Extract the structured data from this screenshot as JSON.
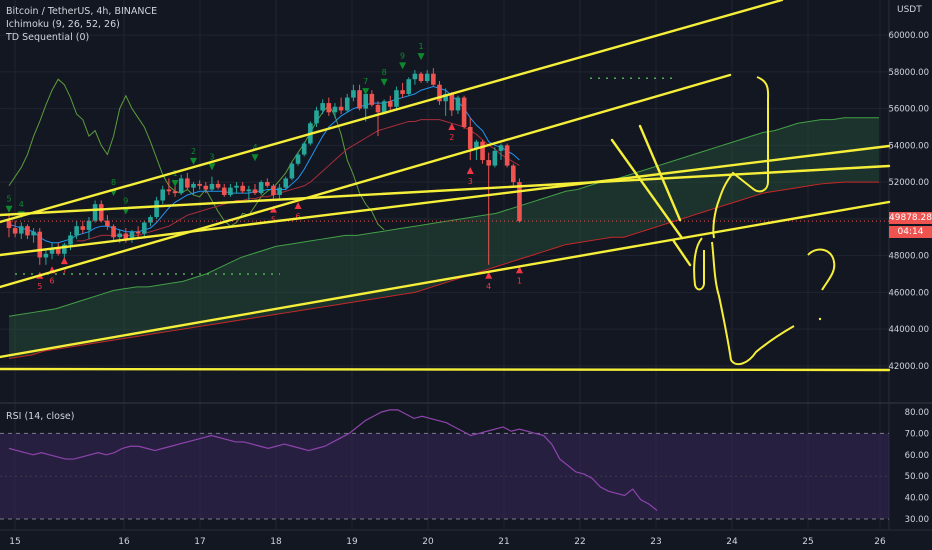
{
  "header": {
    "symbol_line": "Bitcoin / TetherUS, 4h, BINANCE",
    "ichimoku_label": "Ichimoku (9, 26, 52, 26)",
    "td_label": "TD Sequential (0)",
    "rsi_label": "RSI (14, close)",
    "currency": "USDT"
  },
  "price_tag": {
    "value": "49878.28",
    "countdown": "04:14"
  },
  "colors": {
    "background": "#131722",
    "up_candle": "#26a69a",
    "down_candle": "#ef5350",
    "drawing": "#f5ef3a",
    "rsi_line": "#8e44ad",
    "rsi_band": "#3f2a66",
    "tenkan": "#2196f3",
    "kijun": "#a82d3b",
    "chikou": "#5b9c3a",
    "cloud": "#2e5e3e"
  },
  "chart_data": [
    {
      "type": "candlestick",
      "title": "Bitcoin / TetherUS, 4h, BINANCE",
      "x_tick_labels": [
        "15",
        "16",
        "17",
        "18",
        "19",
        "20",
        "21",
        "22",
        "23",
        "24",
        "25",
        "26"
      ],
      "y_tick_labels": [
        "42000.00",
        "44000.00",
        "46000.00",
        "48000.00",
        "50000.00",
        "52000.00",
        "54000.00",
        "56000.00",
        "58000.00",
        "60000.00"
      ],
      "ylim": [
        40500,
        62000
      ],
      "grid": true,
      "last_price": 49878.28,
      "ohlc": [
        [
          49900,
          50200,
          49000,
          49500
        ],
        [
          49500,
          49900,
          49000,
          49200
        ],
        [
          49200,
          49800,
          48900,
          49600
        ],
        [
          49600,
          49700,
          48900,
          49100
        ],
        [
          49100,
          49500,
          48700,
          49300
        ],
        [
          49300,
          49500,
          47500,
          47900
        ],
        [
          47900,
          48400,
          47500,
          48100
        ],
        [
          48100,
          48700,
          47800,
          48400
        ],
        [
          48400,
          48700,
          48000,
          48100
        ],
        [
          48100,
          48700,
          47800,
          48600
        ],
        [
          48600,
          49300,
          48300,
          49100
        ],
        [
          49100,
          49900,
          48900,
          49600
        ],
        [
          49600,
          49900,
          49200,
          49400
        ],
        [
          49400,
          50100,
          48900,
          49900
        ],
        [
          49900,
          51000,
          49800,
          50800
        ],
        [
          50800,
          51000,
          49800,
          49900
        ],
        [
          49900,
          50200,
          49400,
          49600
        ],
        [
          49600,
          49700,
          48800,
          49000
        ],
        [
          49000,
          49400,
          48700,
          49200
        ],
        [
          49200,
          49500,
          48700,
          48900
        ],
        [
          48900,
          49400,
          48700,
          49300
        ],
        [
          49300,
          49600,
          48900,
          49200
        ],
        [
          49200,
          49900,
          49000,
          49800
        ],
        [
          49800,
          50200,
          49600,
          50100
        ],
        [
          50100,
          51200,
          50000,
          51000
        ],
        [
          51000,
          51800,
          50800,
          51600
        ],
        [
          51600,
          52200,
          51300,
          51500
        ],
        [
          51500,
          52000,
          51200,
          51400
        ],
        [
          51400,
          52400,
          51300,
          52200
        ],
        [
          52200,
          52500,
          51600,
          51700
        ],
        [
          51700,
          52000,
          51300,
          51900
        ],
        [
          51900,
          52100,
          51600,
          51800
        ],
        [
          51800,
          52000,
          51400,
          51600
        ],
        [
          51600,
          52300,
          51500,
          51900
        ],
        [
          51900,
          52100,
          51600,
          51700
        ],
        [
          51700,
          51900,
          51200,
          51300
        ],
        [
          51300,
          51900,
          51200,
          51700
        ],
        [
          51700,
          52000,
          51400,
          51800
        ],
        [
          51800,
          52000,
          51400,
          51500
        ],
        [
          51500,
          51800,
          51000,
          51600
        ],
        [
          51600,
          51900,
          51300,
          51400
        ],
        [
          51400,
          52100,
          51300,
          52000
        ],
        [
          52000,
          52200,
          51700,
          51800
        ],
        [
          51800,
          51900,
          51100,
          51300
        ],
        [
          51300,
          51900,
          51000,
          51700
        ],
        [
          51700,
          52300,
          51600,
          52200
        ],
        [
          52200,
          53100,
          52100,
          53000
        ],
        [
          53000,
          53600,
          52900,
          53500
        ],
        [
          53500,
          54200,
          53400,
          54100
        ],
        [
          54100,
          55300,
          54000,
          55200
        ],
        [
          55200,
          56100,
          55000,
          55900
        ],
        [
          55900,
          56500,
          55700,
          56300
        ],
        [
          56300,
          56600,
          55600,
          55800
        ],
        [
          55800,
          56300,
          55500,
          56100
        ],
        [
          56100,
          56600,
          55700,
          55900
        ],
        [
          55900,
          56800,
          55800,
          56600
        ],
        [
          56600,
          57300,
          56400,
          57000
        ],
        [
          57000,
          57300,
          55900,
          56000
        ],
        [
          56000,
          56900,
          55300,
          56800
        ],
        [
          56800,
          57000,
          56100,
          56200
        ],
        [
          56200,
          56400,
          54500,
          55800
        ],
        [
          55800,
          56500,
          55700,
          56400
        ],
        [
          56400,
          56700,
          55900,
          56100
        ],
        [
          56100,
          57200,
          56000,
          57000
        ],
        [
          57000,
          57400,
          56600,
          56800
        ],
        [
          56800,
          57700,
          56700,
          57600
        ],
        [
          57600,
          58100,
          57300,
          57900
        ],
        [
          57900,
          58000,
          57400,
          57500
        ],
        [
          57500,
          58100,
          57400,
          57900
        ],
        [
          57900,
          58200,
          57200,
          57300
        ],
        [
          57300,
          57500,
          56200,
          56400
        ],
        [
          56400,
          57100,
          55600,
          56800
        ],
        [
          56800,
          56900,
          55600,
          55900
        ],
        [
          55900,
          56700,
          55700,
          56600
        ],
        [
          56600,
          56700,
          54900,
          55000
        ],
        [
          55000,
          55500,
          53200,
          53800
        ],
        [
          53800,
          54300,
          53200,
          54200
        ],
        [
          54200,
          54300,
          53000,
          53200
        ],
        [
          53200,
          53600,
          47500,
          52900
        ],
        [
          52900,
          53900,
          52800,
          53700
        ],
        [
          53700,
          54100,
          53200,
          54000
        ],
        [
          54000,
          54100,
          52800,
          52900
        ],
        [
          52900,
          53000,
          51800,
          52000
        ],
        [
          52000,
          52200,
          49800,
          49878
        ]
      ],
      "overlays": [
        {
          "name": "Tenkan-sen",
          "values": [
            49700,
            49600,
            49500,
            49400,
            49300,
            49000,
            48800,
            48700,
            48700,
            48800,
            48900,
            49100,
            49200,
            49300,
            49500,
            49600,
            49600,
            49500,
            49400,
            49300,
            49300,
            49300,
            49400,
            49500,
            49800,
            50200,
            50600,
            50900,
            51100,
            51300,
            51400,
            51500,
            51500,
            51500,
            51500,
            51500,
            51400,
            51400,
            51400,
            51400,
            51500,
            51500,
            51600,
            51600,
            51600,
            51600,
            51900,
            52200,
            52700,
            53300,
            53900,
            54500,
            55000,
            55300,
            55600,
            55800,
            56000,
            56100,
            56200,
            56300,
            56300,
            56300,
            56400,
            56500,
            56600,
            56700,
            56800,
            57000,
            57100,
            57200,
            57100,
            57000,
            56700,
            56400,
            56000,
            55500,
            55100,
            54800,
            54200,
            54000,
            53900,
            53700,
            53500,
            53200
          ]
        },
        {
          "name": "Kijun-sen",
          "values": [
            null,
            null,
            null,
            null,
            null,
            null,
            null,
            null,
            null,
            null,
            null,
            48800,
            48800,
            48900,
            49000,
            49100,
            49100,
            49100,
            49100,
            49100,
            49100,
            49100,
            49200,
            49300,
            49400,
            49500,
            49600,
            49800,
            50000,
            50200,
            50300,
            50400,
            50500,
            50600,
            50700,
            50800,
            50900,
            51000,
            51000,
            51100,
            51100,
            51200,
            51200,
            51300,
            51400,
            51500,
            51600,
            51700,
            51800,
            52000,
            52300,
            52600,
            52900,
            53200,
            53500,
            53800,
            54000,
            54200,
            54400,
            54600,
            54800,
            54900,
            55000,
            55100,
            55200,
            55300,
            55300,
            55400,
            55400,
            55400,
            55400,
            55300,
            55200,
            55100,
            55000,
            54800,
            54600,
            54300,
            54000,
            53800,
            53500,
            53300,
            53100,
            52900
          ]
        },
        {
          "name": "Chikou",
          "values": [
            51800,
            52300,
            52800,
            53500,
            54500,
            55300,
            56200,
            57000,
            57600,
            57300,
            56600,
            55700,
            55400,
            54500,
            54800,
            54000,
            53500,
            54500,
            56000,
            56700,
            56000,
            55500,
            55000,
            54200,
            53300,
            52400,
            51800,
            51500,
            51400,
            51600,
            51300,
            51200,
            51600,
            51000,
            50400,
            49900,
            49600,
            49800,
            50300,
            50200,
            50700,
            51200,
            51500,
            51700,
            52100,
            52500,
            53100,
            53600,
            54100,
            54700,
            55300,
            55800,
            56200,
            55600,
            54600,
            53200,
            52400,
            51400,
            50800,
            50400,
            49700,
            49400
          ]
        },
        {
          "name": "Senkou Span A",
          "values": [
            44700,
            44800,
            44900,
            45000,
            45100,
            45300,
            45500,
            45700,
            45900,
            46100,
            46200,
            46300,
            46300,
            46400,
            46500,
            46600,
            46800,
            47000,
            47300,
            47600,
            47900,
            48100,
            48300,
            48500,
            48600,
            48700,
            48800,
            48900,
            49000,
            49100,
            49100,
            49200,
            49300,
            49400,
            49500,
            49600,
            49700,
            49800,
            49900,
            50000,
            50100,
            50200,
            50300,
            50500,
            50700,
            50900,
            51100,
            51300,
            51500,
            51600,
            51800,
            52000,
            52100,
            52300,
            52500,
            52700,
            52900,
            53100,
            53300,
            53500,
            53700,
            53900,
            54100,
            54300,
            54500,
            54700,
            54800,
            55000,
            55200,
            55300,
            55400,
            55400,
            55500,
            55500,
            55500,
            55500
          ]
        },
        {
          "name": "Senkou Span B",
          "values": [
            42400,
            42500,
            42600,
            42800,
            42900,
            43000,
            43100,
            43200,
            43300,
            43400,
            43500,
            43600,
            43700,
            43800,
            43900,
            44000,
            44100,
            44200,
            44300,
            44400,
            44500,
            44600,
            44700,
            44800,
            44900,
            45000,
            45100,
            45200,
            45300,
            45400,
            45500,
            45600,
            45700,
            45800,
            45900,
            46000,
            46200,
            46400,
            46600,
            46800,
            47000,
            47200,
            47400,
            47600,
            47800,
            48000,
            48200,
            48400,
            48600,
            48700,
            48800,
            48900,
            49000,
            49000,
            49200,
            49400,
            49600,
            49800,
            50000,
            50200,
            50400,
            50600,
            50800,
            51000,
            51200,
            51400,
            51500,
            51600,
            51700,
            51800,
            51900,
            51950,
            52000,
            52000,
            52000,
            52000
          ]
        }
      ],
      "td_markers_visible": [
        "5",
        "4",
        "5",
        "6",
        "7",
        "8",
        "9",
        "1",
        "2",
        "3",
        "4",
        "5",
        "6",
        "7",
        "8",
        "9",
        "1",
        "2",
        "3",
        "4",
        "1",
        "2",
        "3",
        "4",
        "5",
        "6",
        "7",
        "8",
        "9"
      ],
      "annotations": [
        "?"
      ]
    },
    {
      "type": "line",
      "title": "RSI (14, close)",
      "y_tick_labels": [
        "30.00",
        "40.00",
        "50.00",
        "60.00",
        "70.00",
        "80.00"
      ],
      "ylim": [
        27,
        83
      ],
      "bands": [
        30,
        70
      ],
      "values": [
        63,
        62,
        61,
        60,
        61,
        60,
        59,
        58,
        58,
        59,
        60,
        61,
        60,
        61,
        63,
        64,
        64,
        63,
        62,
        63,
        64,
        65,
        66,
        67,
        68,
        69,
        68,
        67,
        66,
        66,
        65,
        64,
        63,
        64,
        65,
        64,
        63,
        62,
        63,
        64,
        66,
        68,
        70,
        73,
        76,
        78,
        80,
        81,
        81,
        79,
        77,
        78,
        77,
        76,
        75,
        73,
        71,
        69,
        70,
        71,
        72,
        73,
        71,
        72,
        71,
        70,
        69,
        65,
        58,
        55,
        52,
        51,
        49,
        45,
        43,
        42,
        41,
        44,
        39,
        37,
        34
      ]
    }
  ]
}
